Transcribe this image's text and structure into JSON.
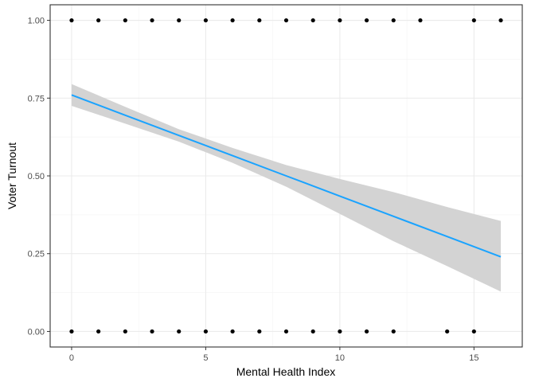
{
  "chart_data": {
    "type": "scatter",
    "title": "",
    "xlabel": "Mental Health Index",
    "ylabel": "Voter Turnout",
    "xlim": [
      -0.8,
      16.8
    ],
    "ylim": [
      -0.05,
      1.05
    ],
    "x_ticks": [
      0,
      5,
      10,
      15
    ],
    "x_tick_labels": [
      "0",
      "5",
      "10",
      "15"
    ],
    "y_ticks": [
      0,
      0.25,
      0.5,
      0.75,
      1.0
    ],
    "y_tick_labels": [
      "0.00",
      "0.25",
      "0.50",
      "0.75",
      "1.00"
    ],
    "grid": true,
    "legend": "none",
    "points": [
      {
        "x": 0,
        "y": 1
      },
      {
        "x": 1,
        "y": 1
      },
      {
        "x": 2,
        "y": 1
      },
      {
        "x": 3,
        "y": 1
      },
      {
        "x": 4,
        "y": 1
      },
      {
        "x": 5,
        "y": 1
      },
      {
        "x": 6,
        "y": 1
      },
      {
        "x": 7,
        "y": 1
      },
      {
        "x": 8,
        "y": 1
      },
      {
        "x": 9,
        "y": 1
      },
      {
        "x": 10,
        "y": 1
      },
      {
        "x": 11,
        "y": 1
      },
      {
        "x": 12,
        "y": 1
      },
      {
        "x": 13,
        "y": 1
      },
      {
        "x": 15,
        "y": 1
      },
      {
        "x": 16,
        "y": 1
      },
      {
        "x": 0,
        "y": 0
      },
      {
        "x": 1,
        "y": 0
      },
      {
        "x": 2,
        "y": 0
      },
      {
        "x": 3,
        "y": 0
      },
      {
        "x": 4,
        "y": 0
      },
      {
        "x": 5,
        "y": 0
      },
      {
        "x": 6,
        "y": 0
      },
      {
        "x": 7,
        "y": 0
      },
      {
        "x": 8,
        "y": 0
      },
      {
        "x": 9,
        "y": 0
      },
      {
        "x": 10,
        "y": 0
      },
      {
        "x": 11,
        "y": 0
      },
      {
        "x": 12,
        "y": 0
      },
      {
        "x": 14,
        "y": 0
      },
      {
        "x": 15,
        "y": 0
      }
    ],
    "fit": {
      "method": "linear",
      "x": [
        0,
        2,
        4,
        6,
        8,
        10,
        12,
        14,
        16
      ],
      "y": [
        0.76,
        0.695,
        0.63,
        0.565,
        0.5,
        0.435,
        0.37,
        0.305,
        0.24
      ],
      "lower": [
        0.725,
        0.668,
        0.61,
        0.542,
        0.465,
        0.378,
        0.29,
        0.21,
        0.128
      ],
      "upper": [
        0.795,
        0.722,
        0.65,
        0.59,
        0.535,
        0.49,
        0.448,
        0.4,
        0.355
      ]
    },
    "colors": {
      "points": "#000000",
      "fit_line": "#1aa3ff",
      "ribbon": "#d3d3d3",
      "grid_major": "#ebebeb",
      "grid_minor": "#f5f5f5",
      "panel_border": "#333333",
      "tick_label": "#4d4d4d"
    }
  }
}
